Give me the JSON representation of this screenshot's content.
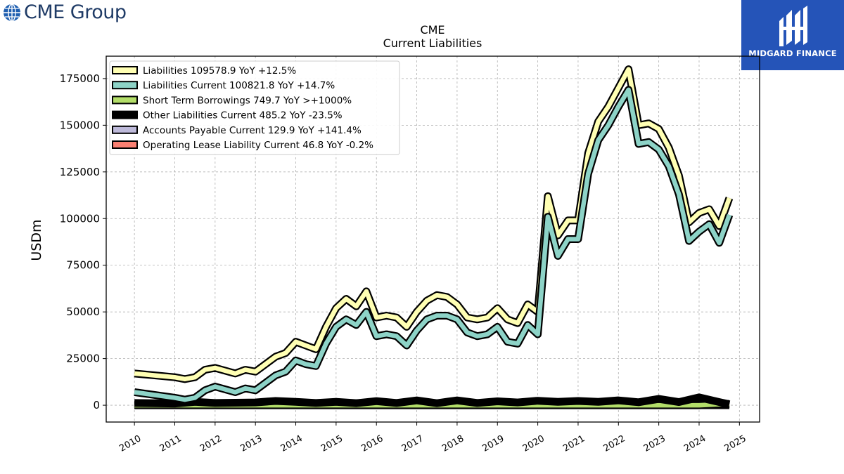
{
  "header": {
    "left_logo_text": "CME Group",
    "left_logo_icon": "globe-icon",
    "right_logo_text": "MIDGARD FINANCE",
    "right_logo_icon": "midgard-monogram-icon",
    "right_logo_bg": "#2554b8"
  },
  "chart_data": {
    "type": "line",
    "title": "CME",
    "subtitle": "Current  Liabilities",
    "ylabel": "USDm",
    "xlabel": "",
    "xlim": [
      2009.3,
      2025.5
    ],
    "ylim": [
      -9000,
      187000
    ],
    "grid": true,
    "legend_position": "top-left",
    "x_ticks": [
      2010,
      2011,
      2012,
      2013,
      2014,
      2015,
      2016,
      2017,
      2018,
      2019,
      2020,
      2021,
      2022,
      2023,
      2024,
      2025
    ],
    "x_tick_labels": [
      "2010",
      "2011",
      "2012",
      "2013",
      "2014",
      "2015",
      "2016",
      "2017",
      "2018",
      "2019",
      "2020",
      "2021",
      "2022",
      "2023",
      "2024",
      "2025"
    ],
    "y_ticks": [
      0,
      25000,
      50000,
      75000,
      100000,
      125000,
      150000,
      175000
    ],
    "y_tick_labels": [
      "0",
      "25000",
      "50000",
      "75000",
      "100000",
      "125000",
      "150000",
      "175000"
    ],
    "legend": [
      "Liabilities  109578.9 YoY +12.5%",
      "Liabilities Current  100821.8 YoY +14.7%",
      "Short Term Borrowings  749.7 YoY >+1000%",
      "Other Liabilities Current  485.2 YoY -23.5%",
      "Accounts Payable Current  129.9 YoY +141.4%",
      "Operating Lease Liability Current  46.8 YoY -0.2%"
    ],
    "series": [
      {
        "name": "Liabilities",
        "color": "#ffffb3",
        "x": [
          2010.0,
          2011.0,
          2011.25,
          2011.5,
          2011.75,
          2012.0,
          2012.5,
          2012.75,
          2013.0,
          2013.25,
          2013.5,
          2013.75,
          2014.0,
          2014.25,
          2014.5,
          2014.75,
          2015.0,
          2015.25,
          2015.5,
          2015.75,
          2016.0,
          2016.25,
          2016.5,
          2016.75,
          2017.0,
          2017.25,
          2017.5,
          2017.75,
          2018.0,
          2018.25,
          2018.5,
          2018.75,
          2019.0,
          2019.25,
          2019.5,
          2019.75,
          2020.0,
          2020.25,
          2020.5,
          2020.75,
          2021.0,
          2021.25,
          2021.5,
          2021.75,
          2022.0,
          2022.25,
          2022.5,
          2022.75,
          2023.0,
          2023.25,
          2023.5,
          2023.75,
          2024.0,
          2024.25,
          2024.5,
          2024.75
        ],
        "y": [
          17000,
          15000,
          14000,
          15000,
          19000,
          20000,
          17000,
          19000,
          18000,
          22000,
          26000,
          28000,
          34000,
          32000,
          30000,
          42000,
          52000,
          57000,
          53000,
          61000,
          47000,
          48000,
          47000,
          42000,
          50000,
          56000,
          59000,
          58000,
          54000,
          47000,
          46000,
          47000,
          52000,
          46000,
          44000,
          54000,
          50000,
          112000,
          91000,
          99000,
          99000,
          135000,
          152000,
          160000,
          170000,
          180000,
          150000,
          151000,
          148000,
          138000,
          123000,
          98000,
          103000,
          105000,
          96000,
          111000
        ]
      },
      {
        "name": "Liabilities Current",
        "color": "#8dd3c7",
        "x": [
          2010.0,
          2011.0,
          2011.25,
          2011.5,
          2011.75,
          2012.0,
          2012.5,
          2012.75,
          2013.0,
          2013.25,
          2013.5,
          2013.75,
          2014.0,
          2014.25,
          2014.5,
          2014.75,
          2015.0,
          2015.25,
          2015.5,
          2015.75,
          2016.0,
          2016.25,
          2016.5,
          2016.75,
          2017.0,
          2017.25,
          2017.5,
          2017.75,
          2018.0,
          2018.25,
          2018.5,
          2018.75,
          2019.0,
          2019.25,
          2019.5,
          2019.75,
          2020.0,
          2020.25,
          2020.5,
          2020.75,
          2021.0,
          2021.25,
          2021.5,
          2021.75,
          2022.0,
          2022.25,
          2022.5,
          2022.75,
          2023.0,
          2023.25,
          2023.5,
          2023.75,
          2024.0,
          2024.25,
          2024.5,
          2024.75
        ],
        "y": [
          7000,
          4000,
          3000,
          4000,
          8000,
          10000,
          7000,
          9000,
          8000,
          12000,
          16000,
          18000,
          24000,
          22000,
          21000,
          33000,
          42000,
          46000,
          43000,
          50000,
          37000,
          38000,
          37000,
          32000,
          40000,
          46000,
          48000,
          48000,
          46000,
          39000,
          37000,
          38000,
          42000,
          34000,
          33000,
          43000,
          38000,
          101000,
          80000,
          89000,
          89000,
          124000,
          142000,
          150000,
          160000,
          169000,
          140000,
          141000,
          137000,
          128000,
          113000,
          88000,
          93000,
          97000,
          87000,
          102000
        ]
      },
      {
        "name": "Short Term Borrowings",
        "color": "#b3de69",
        "x": [
          2010.0,
          2016.0,
          2016.25,
          2024.0,
          2024.75
        ],
        "y": [
          0,
          0,
          0,
          0,
          750
        ]
      },
      {
        "name": "Other Liabilities Current",
        "color": "#000000",
        "x": [
          2010.0,
          2011.0,
          2011.5,
          2012.0,
          2013.0,
          2013.5,
          2014.0,
          2014.5,
          2015.0,
          2015.5,
          2016.0,
          2016.5,
          2017.0,
          2017.5,
          2018.0,
          2018.5,
          2019.0,
          2019.5,
          2020.0,
          2020.5,
          2021.0,
          2021.5,
          2022.0,
          2022.5,
          2023.0,
          2023.5,
          2024.0,
          2024.5,
          2024.75
        ],
        "y": [
          1200,
          900,
          1800,
          1200,
          1500,
          2300,
          1800,
          1200,
          1800,
          1100,
          2200,
          1200,
          2600,
          1100,
          2600,
          1200,
          2100,
          1500,
          2400,
          1800,
          2300,
          1800,
          2600,
          1600,
          3400,
          1700,
          4200,
          1700,
          485
        ]
      },
      {
        "name": "Accounts Payable Current",
        "color": "#bebada",
        "x": [
          2010.0,
          2019.75
        ],
        "y": [
          130,
          130
        ]
      },
      {
        "name": "Operating Lease Liability Current",
        "color": "#fb8072",
        "x": [
          2019.75,
          2024.75
        ],
        "y": [
          47,
          47
        ]
      }
    ]
  }
}
